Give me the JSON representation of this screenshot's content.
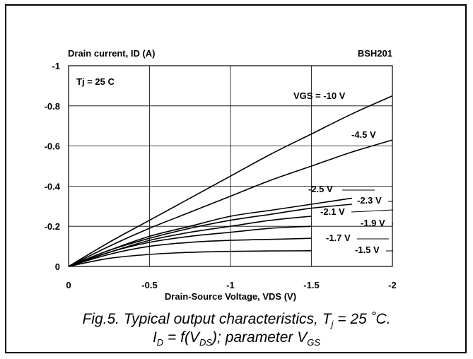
{
  "chart_data": {
    "type": "line",
    "title": "BSH201",
    "ylabel": "Drain current, ID (A)",
    "xlabel": "Drain-Source Voltage, VDS (V)",
    "annotation": "Tj = 25 C",
    "xlim": [
      0,
      -2
    ],
    "ylim": [
      0,
      -1
    ],
    "x_ticks": [
      "0",
      "-0.5",
      "-1",
      "-1.5",
      "-2"
    ],
    "y_ticks": [
      "0",
      "-0.2",
      "-0.4",
      "-0.6",
      "-0.8",
      "-1"
    ],
    "grid": true,
    "series": [
      {
        "name": "VGS = -10 V",
        "x": [
          0,
          -0.25,
          -0.5,
          -0.75,
          -1,
          -1.25,
          -1.5,
          -1.75,
          -2
        ],
        "y": [
          0,
          -0.12,
          -0.23,
          -0.34,
          -0.45,
          -0.56,
          -0.66,
          -0.76,
          -0.85
        ]
      },
      {
        "name": "-4.5 V",
        "x": [
          0,
          -0.25,
          -0.5,
          -0.75,
          -1,
          -1.25,
          -1.5,
          -1.75,
          -2
        ],
        "y": [
          0,
          -0.1,
          -0.19,
          -0.27,
          -0.35,
          -0.43,
          -0.5,
          -0.57,
          -0.63
        ]
      },
      {
        "name": "-2.5 V",
        "x": [
          0,
          -0.25,
          -0.5,
          -0.75,
          -1,
          -1.25,
          -1.5,
          -1.75
        ],
        "y": [
          0,
          -0.08,
          -0.15,
          -0.2,
          -0.25,
          -0.28,
          -0.31,
          -0.34
        ]
      },
      {
        "name": "-2.3 V",
        "x": [
          0,
          -0.25,
          -0.5,
          -0.75,
          -1,
          -1.25,
          -1.5,
          -1.75
        ],
        "y": [
          0,
          -0.08,
          -0.14,
          -0.19,
          -0.23,
          -0.26,
          -0.29,
          -0.31
        ]
      },
      {
        "name": "-2.1 V",
        "x": [
          0,
          -0.25,
          -0.5,
          -0.75,
          -1,
          -1.25,
          -1.5
        ],
        "y": [
          0,
          -0.07,
          -0.13,
          -0.17,
          -0.2,
          -0.23,
          -0.25
        ]
      },
      {
        "name": "-1.9 V",
        "x": [
          0,
          -0.25,
          -0.5,
          -0.75,
          -1,
          -1.25,
          -1.5
        ],
        "y": [
          0,
          -0.07,
          -0.12,
          -0.15,
          -0.17,
          -0.19,
          -0.2
        ]
      },
      {
        "name": "-1.7 V",
        "x": [
          0,
          -0.25,
          -0.5,
          -0.75,
          -1,
          -1.25,
          -1.5
        ],
        "y": [
          0,
          -0.06,
          -0.1,
          -0.12,
          -0.13,
          -0.135,
          -0.14
        ]
      },
      {
        "name": "-1.5 V",
        "x": [
          0,
          -0.25,
          -0.5,
          -0.75,
          -1,
          -1.25,
          -1.5
        ],
        "y": [
          0,
          -0.04,
          -0.06,
          -0.07,
          -0.075,
          -0.077,
          -0.078
        ]
      }
    ]
  },
  "caption": {
    "line1": "Fig.5.  Typical output characteristics, ",
    "line1_sym": "T",
    "line1_sub": "j",
    "line1_end": " = 25 ˚C.",
    "line2_a": "I",
    "line2_a_sub": "D",
    "line2_b": " = f(V",
    "line2_b_sub": "DS",
    "line2_c": "); parameter V",
    "line2_c_sub": "GS"
  }
}
